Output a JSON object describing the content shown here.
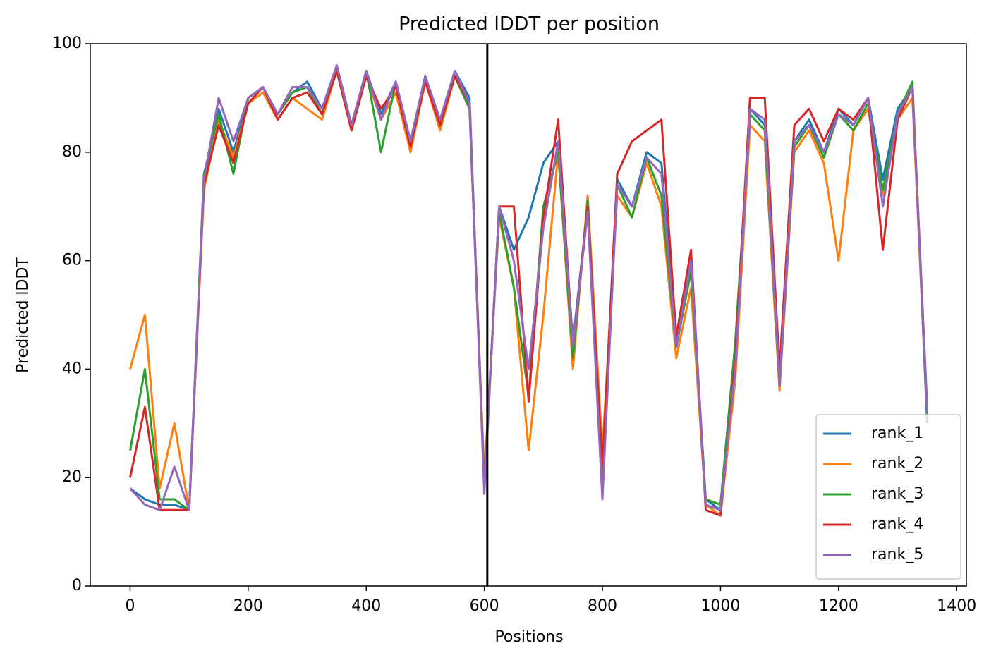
{
  "chart_data": {
    "type": "line",
    "title": "Predicted lDDT per position",
    "xlabel": "Positions",
    "ylabel": "Predicted lDDT",
    "x": [
      0,
      25,
      50,
      75,
      100,
      125,
      150,
      175,
      200,
      225,
      250,
      275,
      300,
      325,
      350,
      375,
      400,
      425,
      450,
      475,
      500,
      525,
      550,
      575,
      600,
      625,
      650,
      675,
      700,
      725,
      750,
      775,
      800,
      825,
      850,
      875,
      900,
      925,
      950,
      975,
      1000,
      1025,
      1050,
      1075,
      1100,
      1125,
      1150,
      1175,
      1200,
      1225,
      1250,
      1275,
      1300,
      1325,
      1350
    ],
    "series": [
      {
        "name": "rank_1",
        "color": "#1f77b4",
        "values": [
          18,
          16,
          15,
          15,
          14,
          75,
          88,
          80,
          90,
          92,
          87,
          91,
          93,
          88,
          96,
          85,
          95,
          87,
          93,
          82,
          94,
          86,
          95,
          90,
          18,
          70,
          62,
          68,
          78,
          82,
          45,
          70,
          18,
          75,
          70,
          80,
          78,
          45,
          60,
          16,
          14,
          40,
          88,
          85,
          38,
          82,
          86,
          80,
          88,
          85,
          90,
          75,
          88,
          92,
          30
        ]
      },
      {
        "name": "rank_2",
        "color": "#ff7f0e",
        "values": [
          40,
          50,
          18,
          30,
          14,
          73,
          86,
          79,
          89,
          91,
          86,
          90,
          88,
          86,
          95,
          84,
          94,
          86,
          91,
          80,
          93,
          84,
          94,
          88,
          20,
          68,
          55,
          25,
          50,
          80,
          40,
          72,
          25,
          72,
          68,
          78,
          70,
          42,
          55,
          15,
          13,
          38,
          85,
          82,
          36,
          80,
          84,
          78,
          60,
          84,
          88,
          72,
          86,
          90,
          32
        ]
      },
      {
        "name": "rank_3",
        "color": "#2ca02c",
        "values": [
          25,
          40,
          16,
          16,
          14,
          76,
          87,
          76,
          90,
          92,
          87,
          91,
          92,
          87,
          96,
          85,
          95,
          80,
          93,
          82,
          94,
          85,
          94,
          88,
          19,
          69,
          55,
          35,
          70,
          80,
          42,
          71,
          20,
          74,
          68,
          79,
          72,
          44,
          58,
          16,
          15,
          45,
          87,
          84,
          37,
          81,
          85,
          79,
          87,
          84,
          89,
          73,
          87,
          93,
          31
        ]
      },
      {
        "name": "rank_4",
        "color": "#d62728",
        "values": [
          20,
          33,
          14,
          14,
          14,
          74,
          85,
          78,
          89,
          92,
          86,
          90,
          91,
          87,
          95,
          84,
          94,
          88,
          92,
          81,
          93,
          85,
          94,
          89,
          18,
          70,
          70,
          34,
          68,
          86,
          44,
          70,
          22,
          76,
          82,
          84,
          86,
          46,
          62,
          14,
          13,
          42,
          90,
          90,
          40,
          85,
          88,
          82,
          88,
          86,
          90,
          62,
          86,
          92,
          33
        ]
      },
      {
        "name": "rank_5",
        "color": "#9467bd",
        "values": [
          18,
          15,
          14,
          22,
          14,
          75,
          90,
          82,
          90,
          92,
          87,
          92,
          92,
          88,
          96,
          85,
          95,
          86,
          93,
          82,
          94,
          86,
          95,
          89,
          17,
          70,
          60,
          40,
          66,
          82,
          44,
          69,
          16,
          74,
          70,
          79,
          76,
          44,
          60,
          15,
          14,
          40,
          88,
          86,
          37,
          82,
          85,
          80,
          87,
          85,
          90,
          70,
          87,
          92,
          32
        ]
      }
    ],
    "vline": 605,
    "xlim": [
      -67.45,
      1416.45
    ],
    "ylim": [
      0,
      100
    ],
    "xticks": [
      0,
      200,
      400,
      600,
      800,
      1000,
      1200,
      1400
    ],
    "yticks": [
      0,
      20,
      40,
      60,
      80,
      100
    ],
    "legend": "lower right"
  }
}
